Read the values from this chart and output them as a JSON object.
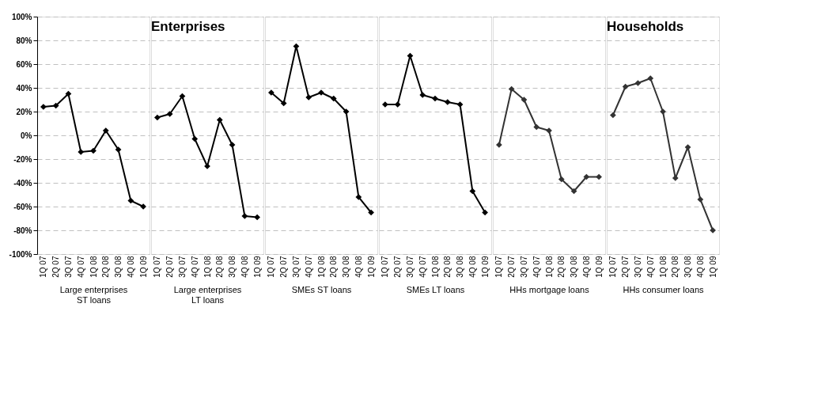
{
  "chart_data": [
    {
      "type": "line",
      "xlabel": "Large enterprises ST loans",
      "categories": [
        "1Q 07",
        "2Q 07",
        "3Q 07",
        "4Q 07",
        "1Q 08",
        "2Q 08",
        "3Q 08",
        "4Q 08",
        "1Q 09"
      ],
      "color": "#000000",
      "values": [
        24,
        25,
        35,
        -14,
        -13,
        4,
        -12,
        -55,
        -60
      ],
      "ylim": [
        -100,
        100
      ],
      "yticks": [
        {
          "value": -100,
          "label": "-100%"
        },
        {
          "value": -80,
          "label": "-80%"
        },
        {
          "value": -60,
          "label": "-60%"
        },
        {
          "value": -40,
          "label": "-40%"
        },
        {
          "value": -20,
          "label": "-20%"
        },
        {
          "value": 0,
          "label": "0%"
        },
        {
          "value": 20,
          "label": "20%"
        },
        {
          "value": 40,
          "label": "40%"
        },
        {
          "value": 60,
          "label": "60%"
        },
        {
          "value": 80,
          "label": "80%"
        },
        {
          "value": 100,
          "label": "100%"
        }
      ],
      "grid": "y",
      "marker": "diamond",
      "line_style": "solid"
    },
    {
      "type": "line",
      "title": "Enterprises",
      "xlabel": "Large enterprises LT loans",
      "categories": [
        "1Q 07",
        "2Q 07",
        "3Q 07",
        "4Q 07",
        "1Q 08",
        "2Q 08",
        "3Q 08",
        "4Q 08",
        "1Q 09"
      ],
      "color": "#000000",
      "values": [
        15,
        18,
        33,
        -3,
        -26,
        13,
        -8,
        -68,
        -69
      ],
      "ylim": [
        -100,
        100
      ],
      "yticks": [
        -100,
        -80,
        -60,
        -40,
        -20,
        0,
        20,
        40,
        60,
        80,
        100
      ],
      "tick_labels": "x",
      "grid": "y",
      "marker": "diamond",
      "line_style": "solid"
    },
    {
      "type": "line",
      "xlabel": "SMEs ST loans",
      "categories": [
        "1Q 07",
        "2Q 07",
        "3Q 07",
        "4Q 07",
        "1Q 08",
        "2Q 08",
        "3Q 08",
        "4Q 08",
        "1Q 09"
      ],
      "color": "#000000",
      "values": [
        36,
        27,
        75,
        32,
        36,
        31,
        20,
        -52,
        -65
      ],
      "ylim": [
        -100,
        100
      ],
      "yticks": [
        -100,
        -80,
        -60,
        -40,
        -20,
        0,
        20,
        40,
        60,
        80,
        100
      ],
      "tick_labels": "x",
      "grid": "y",
      "marker": "diamond",
      "line_style": "solid"
    },
    {
      "type": "line",
      "xlabel": "SMEs LT loans",
      "categories": [
        "1Q 07",
        "2Q 07",
        "3Q 07",
        "4Q 07",
        "1Q 08",
        "2Q 08",
        "3Q 08",
        "4Q 08",
        "1Q 09"
      ],
      "color": "#000000",
      "values": [
        26,
        26,
        67,
        34,
        31,
        28,
        26,
        -47,
        -65
      ],
      "ylim": [
        -100,
        100
      ],
      "yticks": [
        -100,
        -80,
        -60,
        -40,
        -20,
        0,
        20,
        40,
        60,
        80,
        100
      ],
      "tick_labels": "x",
      "grid": "y",
      "marker": "diamond",
      "line_style": "solid"
    },
    {
      "type": "line",
      "xlabel": "HHs mortgage loans",
      "categories": [
        "1Q 07",
        "2Q 07",
        "3Q 07",
        "4Q 07",
        "1Q 08",
        "2Q 08",
        "3Q 08",
        "4Q 08",
        "1Q 09"
      ],
      "color": "#333333",
      "values": [
        -8,
        39,
        30,
        7,
        4,
        -37,
        -47,
        -35,
        -35
      ],
      "ylim": [
        -100,
        100
      ],
      "yticks": [
        -100,
        -80,
        -60,
        -40,
        -20,
        0,
        20,
        40,
        60,
        80,
        100
      ],
      "tick_labels": "x",
      "grid": "y",
      "marker": "diamond",
      "line_style": "solid"
    },
    {
      "type": "line",
      "title": "Households",
      "xlabel": "HHs consumer loans",
      "categories": [
        "1Q 07",
        "2Q 07",
        "3Q 07",
        "4Q 07",
        "1Q 08",
        "2Q 08",
        "3Q 08",
        "4Q 08",
        "1Q 09"
      ],
      "color": "#333333",
      "values": [
        17,
        41,
        44,
        48,
        20,
        -36,
        -10,
        -54,
        -80
      ],
      "ylim": [
        -100,
        100
      ],
      "yticks": [
        -100,
        -80,
        -60,
        -40,
        -20,
        0,
        20,
        40,
        60,
        80,
        100
      ],
      "tick_labels": "x",
      "grid": "y",
      "marker": "diamond",
      "line_style": "solid"
    }
  ]
}
